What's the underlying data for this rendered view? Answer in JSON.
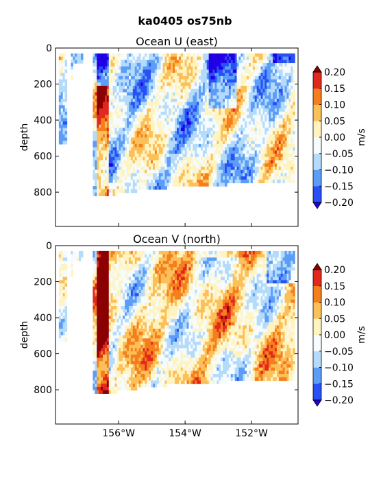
{
  "suptitle": "ka0405 os75nb",
  "colorbar_levels": [
    -0.2,
    -0.15,
    -0.1,
    -0.05,
    0.0,
    0.05,
    0.1,
    0.15,
    0.2
  ],
  "colorbar_tick_labels": [
    "−0.20",
    "−0.15",
    "−0.10",
    "−0.05",
    "0.00",
    "0.05",
    "0.10",
    "0.15",
    "0.20"
  ],
  "colorbar_colors": [
    "#2200e6",
    "#2850f5",
    "#5c9df7",
    "#b4dbfb",
    "#f5fbfe",
    "#fff4c0",
    "#fcc05a",
    "#f57f1c",
    "#e2291e",
    "#8b0000"
  ],
  "colorbar_label": "m/s",
  "colors_extend": {
    "under": "#12006e",
    "over": "#800000"
  },
  "chart_data": [
    {
      "type": "heatmap",
      "name": "u",
      "title": "Ocean U (east)",
      "xlabel": "",
      "ylabel": "depth",
      "xlim": [
        -157.9,
        -150.6
      ],
      "ylim": [
        990,
        0
      ],
      "x_ticks": [
        -156,
        -154,
        -152
      ],
      "x_tick_labels": [
        "156°W",
        "154°W",
        "152°W"
      ],
      "y_ticks": [
        0,
        200,
        400,
        600,
        800
      ],
      "y_tick_labels": [
        "0",
        "200",
        "400",
        "600",
        "800"
      ],
      "units": "m/s",
      "bias": -0.03,
      "seed": 7
    },
    {
      "type": "heatmap",
      "name": "v",
      "title": "Ocean V (north)",
      "xlabel": "",
      "ylabel": "depth",
      "xlim": [
        -157.9,
        -150.6
      ],
      "ylim": [
        990,
        0
      ],
      "x_ticks": [
        -156,
        -154,
        -152
      ],
      "x_tick_labels": [
        "156°W",
        "154°W",
        "152°W"
      ],
      "y_ticks": [
        0,
        200,
        400,
        600,
        800
      ],
      "y_tick_labels": [
        "0",
        "200",
        "400",
        "600",
        "800"
      ],
      "units": "m/s",
      "bias": 0.02,
      "seed": 19
    }
  ]
}
